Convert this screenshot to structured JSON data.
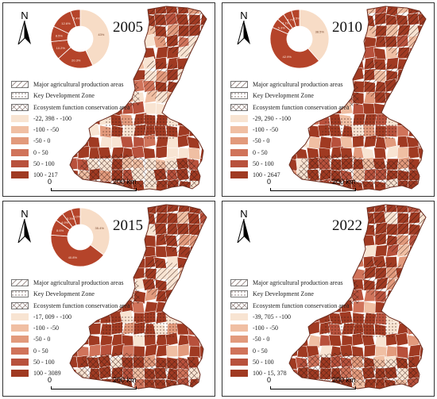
{
  "north_label": "N",
  "scale": {
    "start": "0",
    "end": "200 km"
  },
  "zone_legend": [
    {
      "label": "Major agricultural production areas",
      "pattern": "hatch"
    },
    {
      "label": "Key Development Zone",
      "pattern": "dots"
    },
    {
      "label": "Ecosystem function conservation area",
      "pattern": "cross"
    }
  ],
  "class_colors": [
    "#f8e4d2",
    "#f0bfa3",
    "#e29a7c",
    "#d0735a",
    "#b8513c",
    "#a03a22"
  ],
  "colors": {
    "pie_light": "#f7dcc6",
    "pie_dark": "#b5442a",
    "outline": "#6b2b1d"
  },
  "panels": [
    {
      "year": "2005",
      "has_pie": true,
      "pie": {
        "values": [
          43,
          20.3,
          10.2,
          8.5,
          12.6,
          5.4
        ],
        "labels": [
          "43%",
          "20.3%",
          "10.2%",
          "8.5%",
          "12.6%",
          "5.4%"
        ]
      },
      "classes": [
        "-22, 398 - -100",
        "-100 - -50",
        "-50 - 0",
        "0 - 50",
        "50 - 100",
        "100 - 217"
      ],
      "class_mix": [
        0.18,
        0.08,
        0.07,
        0.06,
        0.11,
        0.5
      ]
    },
    {
      "year": "2010",
      "has_pie": true,
      "pie": {
        "values": [
          38.5,
          42.9,
          5.3,
          4.1,
          4.7,
          4.5
        ],
        "labels": [
          "38.5%",
          "42.9%",
          "5.3%",
          "4.1%",
          "4.7%",
          "4.5%"
        ]
      },
      "classes": [
        "-29, 290 - -100",
        "-100 - -50",
        "-50 - 0",
        "0 - 50",
        "50 - 100",
        "100 - 2647"
      ],
      "class_mix": [
        0.12,
        0.05,
        0.05,
        0.05,
        0.1,
        0.63
      ]
    },
    {
      "year": "2015",
      "has_pie": true,
      "pie": {
        "values": [
          35.4,
          40.8,
          8.6,
          4.9,
          5.3,
          5.0
        ],
        "labels": [
          "35.4%",
          "40.8%",
          "8.6%",
          "4.9%",
          "5.3%",
          "5.0%"
        ]
      },
      "classes": [
        "-17, 009 - -100",
        "-100 - -50",
        "-50 - 0",
        "0 - 50",
        "50 - 100",
        "100 - 3089"
      ],
      "class_mix": [
        0.1,
        0.06,
        0.06,
        0.05,
        0.1,
        0.63
      ]
    },
    {
      "year": "2022",
      "has_pie": false,
      "pie": null,
      "classes": [
        "-39, 705 - -100",
        "-100 - -50",
        "-50 - 0",
        "0 - 50",
        "50 - 100",
        "100 - 15, 378"
      ],
      "class_mix": [
        0.08,
        0.04,
        0.04,
        0.04,
        0.08,
        0.72
      ]
    }
  ]
}
